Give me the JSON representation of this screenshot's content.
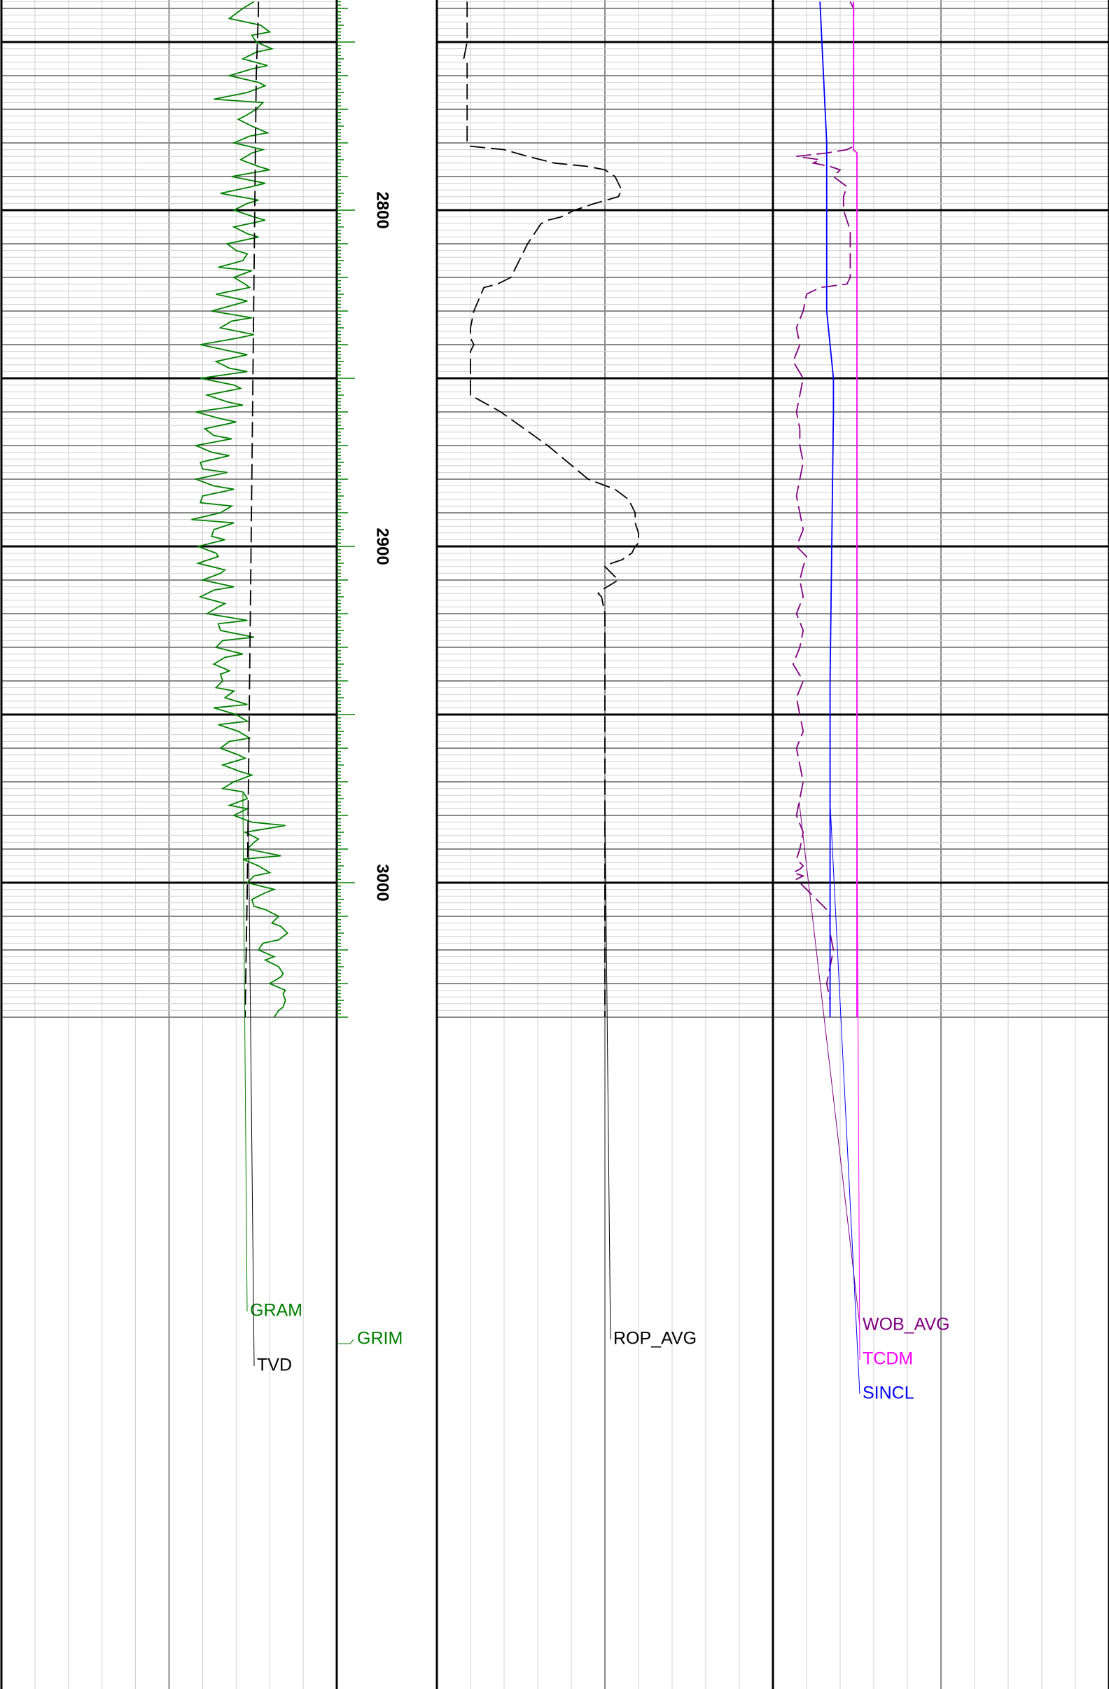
{
  "chart_data": {
    "type": "line",
    "title": "",
    "depth_axis": {
      "ylim": [
        2738,
        3040
      ],
      "major_interval": 50,
      "labels": [
        "2800",
        "2900",
        "3000"
      ]
    },
    "tracks": [
      {
        "id": "track1",
        "curves": [
          {
            "name": "GRAM",
            "color": "#008000",
            "style": "solid",
            "xlim": [
              0,
              150
            ],
            "depth": [
              2738,
              2740,
              2743,
              2745,
              2747,
              2748,
              2750,
              2752,
              2753,
              2755,
              2757,
              2758,
              2760,
              2762,
              2763,
              2765,
              2767,
              2768,
              2770,
              2772,
              2773,
              2775,
              2777,
              2778,
              2780,
              2782,
              2783,
              2785,
              2787,
              2788,
              2790,
              2792,
              2793,
              2795,
              2797,
              2798,
              2800,
              2802,
              2803,
              2805,
              2807,
              2808,
              2810,
              2812,
              2813,
              2815,
              2817,
              2818,
              2820,
              2822,
              2823,
              2825,
              2827,
              2828,
              2830,
              2832,
              2833,
              2835,
              2837,
              2838,
              2840,
              2842,
              2843,
              2845,
              2847,
              2848,
              2850,
              2852,
              2853,
              2855,
              2857,
              2858,
              2860,
              2862,
              2863,
              2865,
              2867,
              2868,
              2870,
              2872,
              2873,
              2875,
              2877,
              2878,
              2880,
              2882,
              2883,
              2885,
              2887,
              2888,
              2890,
              2892,
              2893,
              2895,
              2897,
              2898,
              2900,
              2902,
              2903,
              2905,
              2907,
              2908,
              2910,
              2912,
              2913,
              2915,
              2917,
              2918,
              2920,
              2922,
              2923,
              2925,
              2927,
              2928,
              2930,
              2932,
              2933,
              2935,
              2937,
              2938,
              2940,
              2942,
              2943,
              2945,
              2947,
              2948,
              2950,
              2952,
              2953,
              2955,
              2957,
              2958,
              2960,
              2962,
              2963,
              2965,
              2967,
              2968,
              2970,
              2972,
              2973,
              2975,
              2977,
              2978,
              2980,
              2982,
              2983,
              2985,
              2987,
              2988,
              2990,
              2992,
              2993,
              2995,
              2997,
              2998,
              3000,
              3002,
              3003,
              3005,
              3007,
              3008,
              3010,
              3012,
              3013,
              3015,
              3017,
              3018,
              3020,
              3022,
              3023,
              3025,
              3027,
              3028,
              3030,
              3032,
              3033,
              3035,
              3037,
              3038,
              3040
            ],
            "values": [
              113,
              108,
              102,
              116,
              120,
              112,
              114,
              121,
              114,
              108,
              119,
              112,
              102,
              115,
              118,
              110,
              95,
              117,
              114,
              109,
              106,
              112,
              119,
              111,
              104,
              117,
              112,
              107,
              115,
              120,
              103,
              118,
              112,
              98,
              115,
              110,
              104,
              113,
              118,
              104,
              110,
              115,
              101,
              105,
              110,
              108,
              97,
              112,
              104,
              109,
              111,
              96,
              110,
              105,
              94,
              112,
              103,
              98,
              113,
              106,
              89,
              103,
              110,
              96,
              102,
              110,
              89,
              104,
              107,
              92,
              101,
              108,
              87,
              98,
              105,
              91,
              95,
              103,
              87,
              94,
              102,
              89,
              90,
              101,
              87,
              95,
              104,
              90,
              89,
              103,
              98,
              85,
              104,
              95,
              94,
              100,
              88,
              96,
              97,
              88,
              100,
              98,
              90,
              104,
              95,
              89,
              100,
              97,
              92,
              110,
              97,
              98,
              113,
              99,
              96,
              108,
              100,
              95,
              102,
              98,
              99,
              96,
              104,
              100,
              110,
              95,
              105,
              110,
              97,
              106,
              111,
              102,
              98,
              106,
              109,
              99,
              107,
              112,
              104,
              99,
              108,
              110,
              102,
              110,
              104,
              112,
              127,
              109,
              115,
              113,
              110,
              125,
              108,
              115,
              120,
              113,
              110,
              122,
              118,
              112,
              113,
              118,
              124,
              121,
              125,
              128,
              124,
              117,
              115,
              122,
              118,
              124,
              126,
              125,
              120,
              127,
              126,
              127,
              126,
              124,
              122,
              121
            ]
          },
          {
            "name": "TVD",
            "color": "#000000",
            "style": "dashed",
            "xlim": [
              0,
              150
            ],
            "depth": [
              2738,
              2740,
              2760,
              2820,
              2880,
              2940,
              3000,
              3040
            ],
            "values": [
              115,
              115,
              114,
              113,
              112,
              111,
              110,
              109
            ]
          }
        ]
      },
      {
        "id": "track2",
        "curves": [
          {
            "name": "ROP_AVG",
            "color": "#000000",
            "style": "dashed",
            "xlim": [
              0,
              100
            ],
            "depth": [
              2738,
              2750,
              2755,
              2756,
              2757,
              2780,
              2781,
              2782,
              2784,
              2786,
              2787,
              2788,
              2790,
              2792,
              2794,
              2796,
              2798,
              2800,
              2802,
              2803,
              2804,
              2810,
              2820,
              2822,
              2823,
              2830,
              2835,
              2838,
              2840,
              2842,
              2844,
              2848,
              2855,
              2860,
              2870,
              2880,
              2883,
              2886,
              2888,
              2890,
              2893,
              2896,
              2899,
              2900,
              2902,
              2904,
              2905,
              2906,
              2908,
              2910,
              2913,
              2914,
              2915,
              2920,
              2930,
              2940,
              2950,
              2960,
              2970,
              2975,
              2980,
              2985,
              2990,
              2995,
              2996,
              2997,
              2998,
              2999,
              3000,
              3002,
              3004,
              3006,
              3008,
              3010,
              3012,
              3015,
              3020,
              3025,
              3030,
              3035,
              3040
            ],
            "values": [
              9,
              9,
              8,
              9,
              9,
              9,
              10,
              20,
              27,
              35,
              45,
              50,
              53,
              54,
              55,
              54,
              47,
              41,
              37,
              33,
              31,
              27,
              22,
              18,
              14,
              11,
              10,
              10,
              11,
              10,
              10,
              10,
              10,
              19,
              33,
              45,
              53,
              57,
              58,
              59,
              59,
              60,
              60,
              59,
              58,
              55,
              52,
              50,
              52,
              54,
              49,
              48,
              49,
              50,
              50,
              50,
              50,
              50,
              50,
              50,
              50,
              50,
              50,
              50,
              50,
              50,
              50,
              50,
              50,
              50,
              50,
              50,
              50,
              50,
              50,
              50,
              50,
              50,
              50,
              50,
              50
            ]
          }
        ]
      },
      {
        "id": "track3",
        "curves": [
          {
            "name": "WOB_AVG",
            "color": "#800080",
            "style": "dashed",
            "xlim": [
              0,
              100
            ],
            "depth": [
              2738,
              2740,
              2760,
              2781,
              2782,
              2783,
              2784,
              2785,
              2786,
              2787,
              2788,
              2790,
              2793,
              2796,
              2800,
              2803,
              2806,
              2810,
              2820,
              2822,
              2823,
              2825,
              2830,
              2835,
              2840,
              2845,
              2850,
              2855,
              2860,
              2865,
              2870,
              2875,
              2880,
              2885,
              2890,
              2895,
              2900,
              2903,
              2906,
              2910,
              2915,
              2920,
              2925,
              2930,
              2935,
              2940,
              2945,
              2950,
              2955,
              2960,
              2965,
              2970,
              2975,
              2980,
              2985,
              2990,
              2993,
              2995,
              2996,
              2997,
              2998,
              2999,
              3000,
              3002,
              3004,
              3006,
              3008,
              3010,
              3015,
              3020,
              3025,
              3030,
              3035,
              3040
            ],
            "values": [
              23,
              24,
              24,
              24,
              22,
              16,
              7,
              14,
              12,
              17,
              20,
              18,
              22,
              21,
              21,
              22,
              23,
              23,
              23,
              22,
              14,
              10,
              9,
              7,
              8,
              6,
              9,
              8,
              7,
              8,
              8,
              9,
              8,
              7,
              8,
              9,
              7,
              10,
              9,
              8,
              9,
              7,
              9,
              8,
              6,
              9,
              7,
              8,
              9,
              7,
              8,
              9,
              8,
              7,
              9,
              8,
              7,
              9,
              8,
              6,
              9,
              7,
              8,
              10,
              12,
              14,
              16,
              17,
              17,
              18,
              17,
              16,
              17,
              17
            ]
          },
          {
            "name": "TCDM",
            "color": "#ff00ff",
            "style": "solid",
            "xlim": [
              0,
              100
            ],
            "depth": [
              2738,
              2782,
              2783,
              3040
            ],
            "values": [
              24,
              24,
              25,
              25
            ]
          },
          {
            "name": "SINCL",
            "color": "#0000ff",
            "style": "solid",
            "xlim": [
              0,
              100
            ],
            "depth": [
              2738,
              2780,
              2830,
              2850,
              2860,
              2940,
              3040
            ],
            "values": [
              14,
              16,
              16,
              18,
              18,
              17,
              17
            ]
          }
        ]
      }
    ],
    "depth_track_curves": [
      {
        "name": "GRIM",
        "color": "#008000"
      }
    ]
  }
}
